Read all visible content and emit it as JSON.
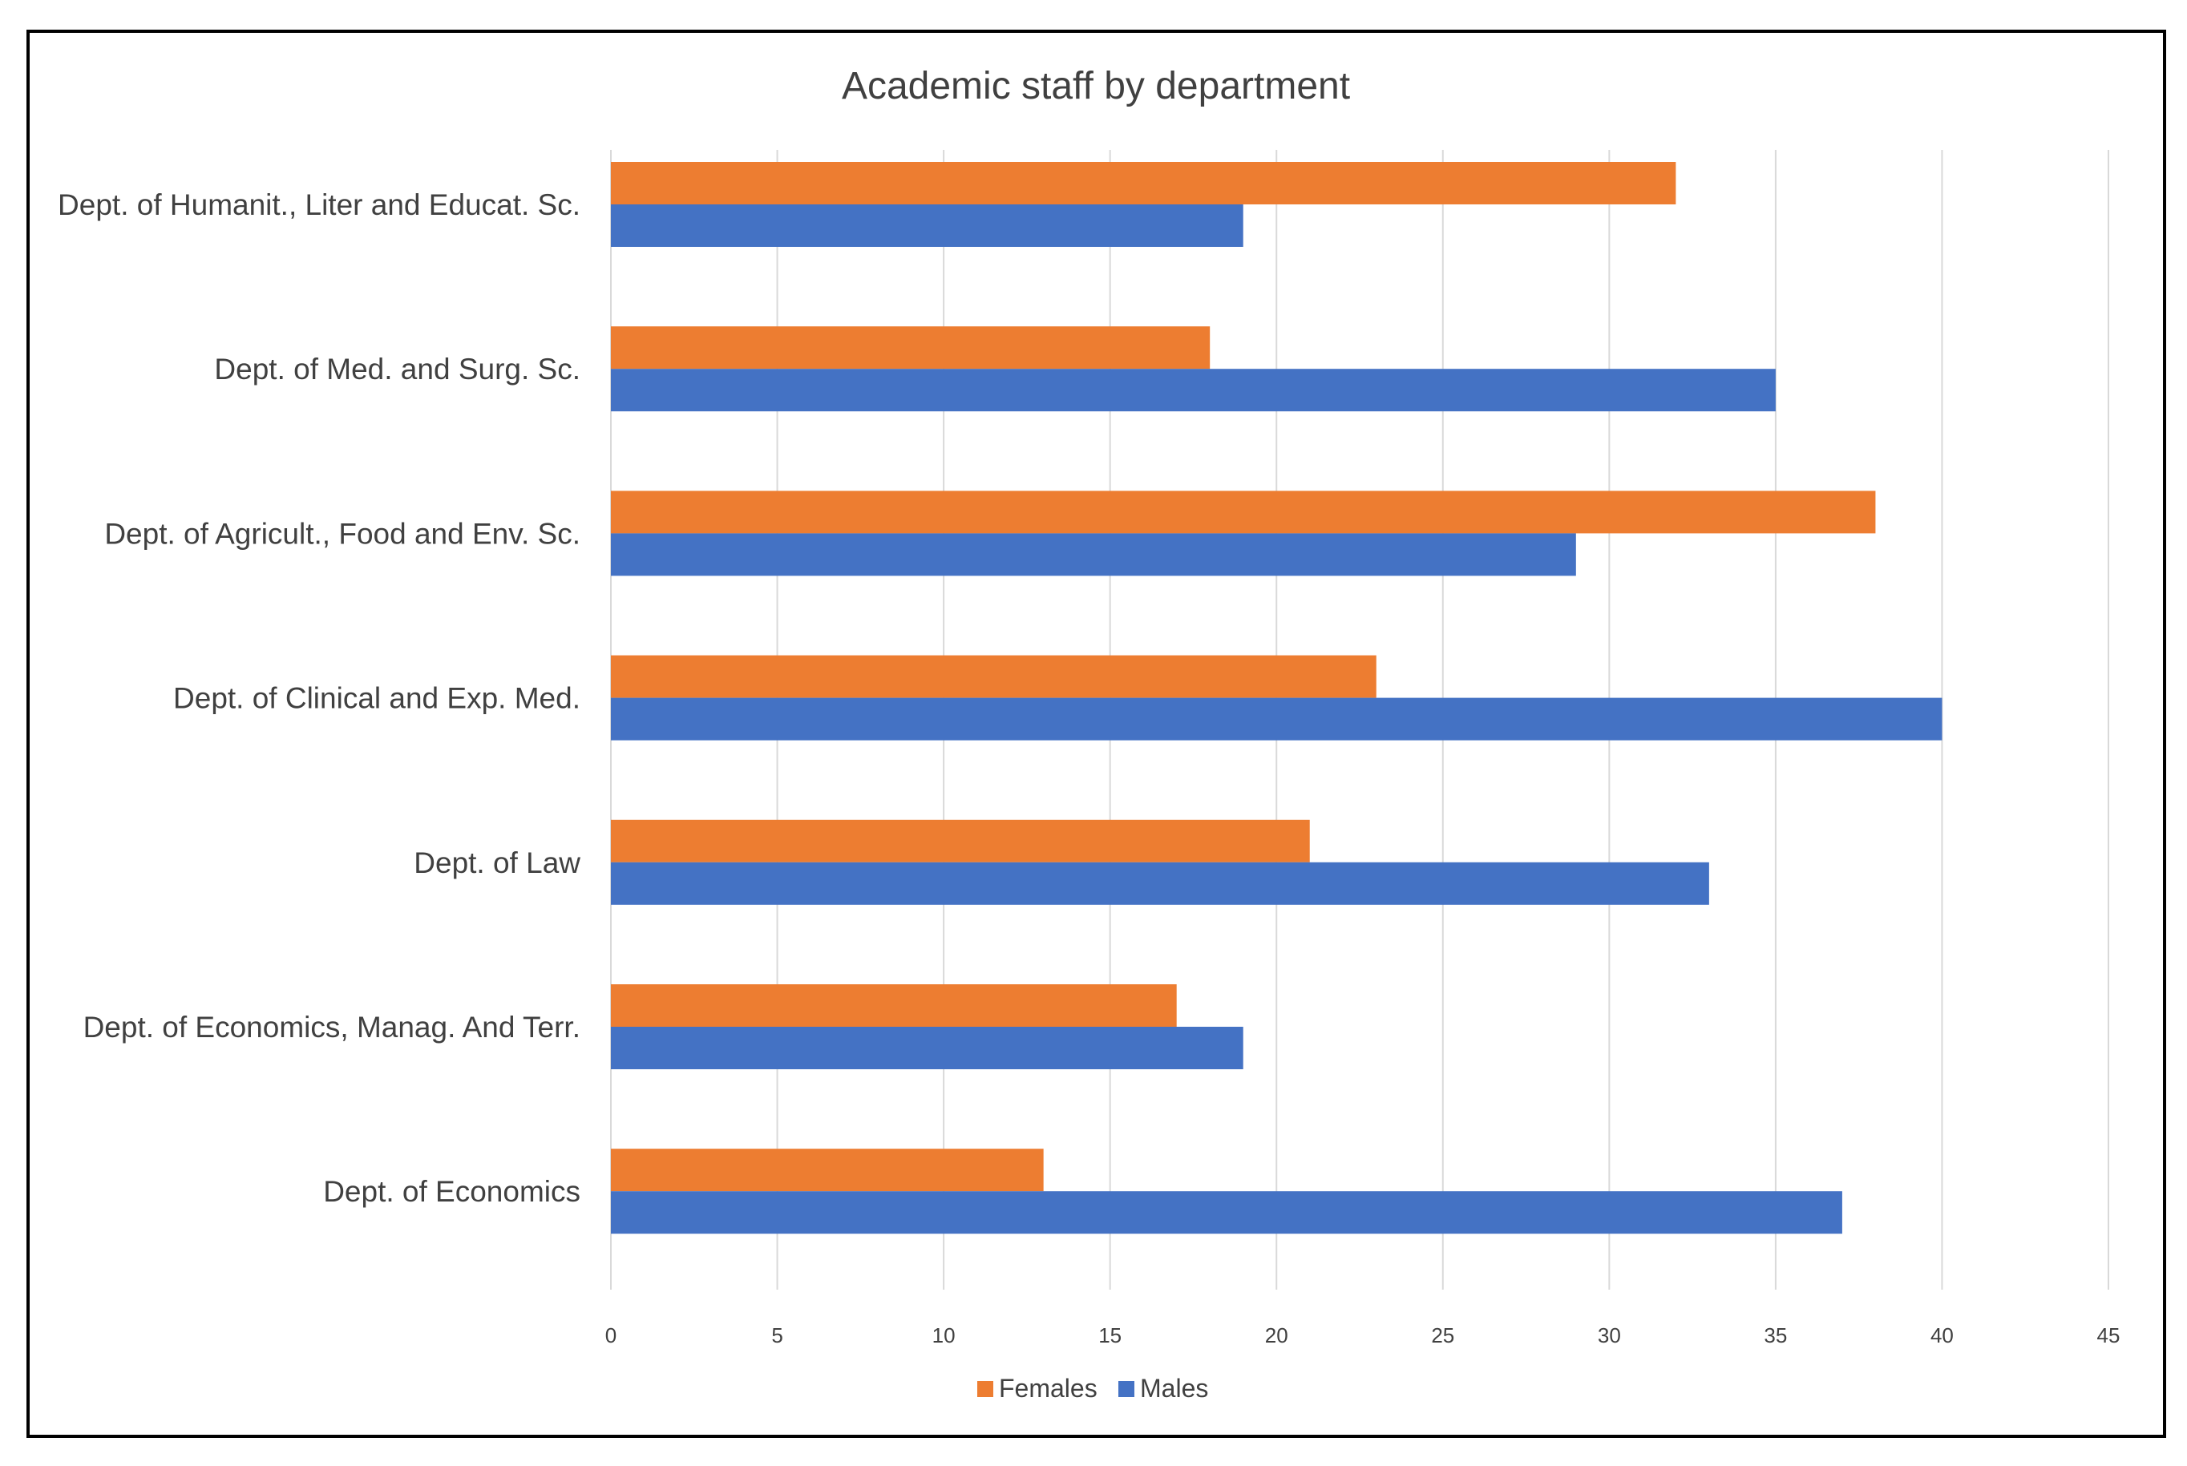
{
  "chart_data": {
    "type": "bar",
    "orientation": "horizontal",
    "title": "Academic staff by department",
    "categories": [
      "Dept. of Humanit., Liter and Educat. Sc.",
      "Dept. of Med. and Surg. Sc.",
      "Dept. of Agricult., Food and Env. Sc.",
      "Dept. of  Clinical and Exp. Med.",
      "Dept. of Law",
      "Dept. of Economics, Manag. And Terr.",
      "Dept. of Economics"
    ],
    "series": [
      {
        "name": "Females",
        "color": "#ED7D31",
        "values": [
          32,
          18,
          38,
          23,
          21,
          17,
          13
        ]
      },
      {
        "name": "Males",
        "color": "#4472C4",
        "values": [
          19,
          35,
          29,
          40,
          33,
          19,
          37
        ]
      }
    ],
    "xlim": [
      0,
      45
    ],
    "ticks": [
      "0",
      "5",
      "10",
      "15",
      "20",
      "25",
      "30",
      "35",
      "40",
      "45"
    ],
    "grid": true,
    "legend": "bottom",
    "xlabel": "",
    "ylabel": ""
  }
}
